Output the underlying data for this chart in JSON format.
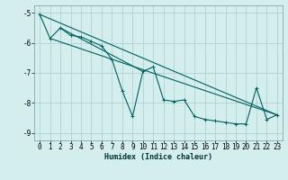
{
  "xlabel": "Humidex (Indice chaleur)",
  "bg_color": "#d4eeee",
  "line_color": "#006060",
  "grid_color": "#aacccc",
  "xlim": [
    -0.5,
    23.5
  ],
  "ylim": [
    -9.25,
    -4.75
  ],
  "yticks": [
    -9,
    -8,
    -7,
    -6,
    -5
  ],
  "xticks": [
    0,
    1,
    2,
    3,
    4,
    5,
    6,
    7,
    8,
    9,
    10,
    11,
    12,
    13,
    14,
    15,
    16,
    17,
    18,
    19,
    20,
    21,
    22,
    23
  ],
  "line1": [
    [
      0,
      -5.05
    ],
    [
      1,
      -5.85
    ],
    [
      2,
      -5.5
    ],
    [
      3,
      -5.75
    ],
    [
      4,
      -5.8
    ],
    [
      5,
      -5.95
    ],
    [
      6,
      -6.1
    ],
    [
      7,
      -6.55
    ],
    [
      8,
      -7.6
    ],
    [
      9,
      -8.45
    ],
    [
      10,
      -6.95
    ],
    [
      11,
      -6.8
    ],
    [
      12,
      -7.9
    ],
    [
      13,
      -7.95
    ],
    [
      14,
      -7.9
    ],
    [
      15,
      -8.45
    ],
    [
      16,
      -8.55
    ],
    [
      17,
      -8.6
    ],
    [
      18,
      -8.65
    ],
    [
      19,
      -8.7
    ],
    [
      20,
      -8.7
    ],
    [
      21,
      -7.5
    ],
    [
      22,
      -8.55
    ],
    [
      23,
      -8.4
    ]
  ],
  "line2_straight": [
    [
      0,
      -5.05
    ],
    [
      23,
      -8.4
    ]
  ],
  "line3_straight": [
    [
      1,
      -5.85
    ],
    [
      23,
      -8.4
    ]
  ],
  "line4_straight": [
    [
      2,
      -5.5
    ],
    [
      10,
      -6.95
    ]
  ]
}
